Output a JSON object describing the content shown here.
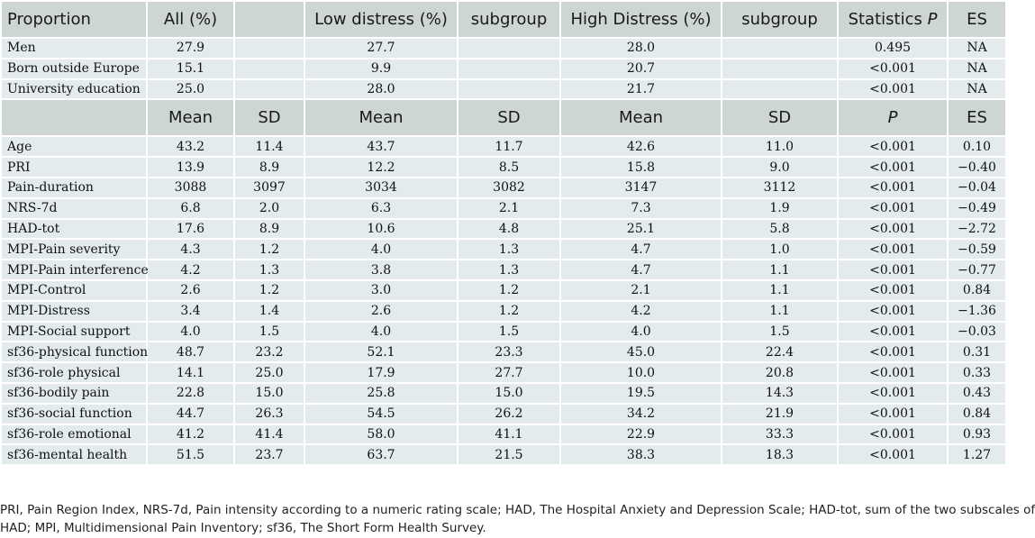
{
  "table": {
    "proportion_header": [
      "Proportion",
      "All (%)",
      "",
      "Low distress (%)",
      "subgroup",
      "High Distress (%)",
      "subgroup",
      "Statistics ",
      "ES"
    ],
    "proportion_header_p": "P",
    "proportion_rows": [
      [
        "Men",
        "27.9",
        "",
        "27.7",
        "",
        "28.0",
        "",
        "0.495",
        "NA"
      ],
      [
        "Born outside Europe",
        "15.1",
        "",
        "9.9",
        "",
        "20.7",
        "",
        "<0.001",
        "NA"
      ],
      [
        "University education",
        "25.0",
        "",
        "28.0",
        "",
        "21.7",
        "",
        "<0.001",
        "NA"
      ]
    ],
    "mean_header": [
      "",
      "Mean",
      "SD",
      "Mean",
      "SD",
      "Mean",
      "SD",
      "",
      "ES"
    ],
    "mean_header_p": "P",
    "mean_rows": [
      [
        "Age",
        "43.2",
        "11.4",
        "43.7",
        "11.7",
        "42.6",
        "11.0",
        "<0.001",
        "0.10"
      ],
      [
        "PRI",
        "13.9",
        "8.9",
        "12.2",
        "8.5",
        "15.8",
        "9.0",
        "<0.001",
        "−0.40"
      ],
      [
        "Pain-duration",
        "3088",
        "3097",
        "3034",
        "3082",
        "3147",
        "3112",
        "<0.001",
        "−0.04"
      ],
      [
        "NRS-7d",
        "6.8",
        "2.0",
        "6.3",
        "2.1",
        "7.3",
        "1.9",
        "<0.001",
        "−0.49"
      ],
      [
        "HAD-tot",
        "17.6",
        "8.9",
        "10.6",
        "4.8",
        "25.1",
        "5.8",
        "<0.001",
        "−2.72"
      ],
      [
        "MPI-Pain severity",
        "4.3",
        "1.2",
        "4.0",
        "1.3",
        "4.7",
        "1.0",
        "<0.001",
        "−0.59"
      ],
      [
        "MPI-Pain interference",
        "4.2",
        "1.3",
        "3.8",
        "1.3",
        "4.7",
        "1.1",
        "<0.001",
        "−0.77"
      ],
      [
        "MPI-Control",
        "2.6",
        "1.2",
        "3.0",
        "1.2",
        "2.1",
        "1.1",
        "<0.001",
        "0.84"
      ],
      [
        "MPI-Distress",
        "3.4",
        "1.4",
        "2.6",
        "1.2",
        "4.2",
        "1.1",
        "<0.001",
        "−1.36"
      ],
      [
        "MPI-Social support",
        "4.0",
        "1.5",
        "4.0",
        "1.5",
        "4.0",
        "1.5",
        "<0.001",
        "−0.03"
      ],
      [
        "sf36-physical function",
        "48.7",
        "23.2",
        "52.1",
        "23.3",
        "45.0",
        "22.4",
        "<0.001",
        "0.31"
      ],
      [
        "sf36-role physical",
        "14.1",
        "25.0",
        "17.9",
        "27.7",
        "10.0",
        "20.8",
        "<0.001",
        "0.33"
      ],
      [
        "sf36-bodily pain",
        "22.8",
        "15.0",
        "25.8",
        "15.0",
        "19.5",
        "14.3",
        "<0.001",
        "0.43"
      ],
      [
        "sf36-social function",
        "44.7",
        "26.3",
        "54.5",
        "26.2",
        "34.2",
        "21.9",
        "<0.001",
        "0.84"
      ],
      [
        "sf36-role emotional",
        "41.2",
        "41.4",
        "58.0",
        "41.1",
        "22.9",
        "33.3",
        "<0.001",
        "0.93"
      ],
      [
        "sf36-mental health",
        "51.5",
        "23.7",
        "63.7",
        "21.5",
        "38.3",
        "18.3",
        "<0.001",
        "1.27"
      ]
    ]
  },
  "footnote": {
    "line1": "PRI, Pain Region Index, NRS-7d, Pain intensity according to a numeric rating scale; HAD, The Hospital Anxiety and Depression Scale; HAD-tot, sum of the two subscales of",
    "line2": "HAD; MPI, Multidimensional Pain Inventory; sf36, The Short Form Health Survey."
  }
}
